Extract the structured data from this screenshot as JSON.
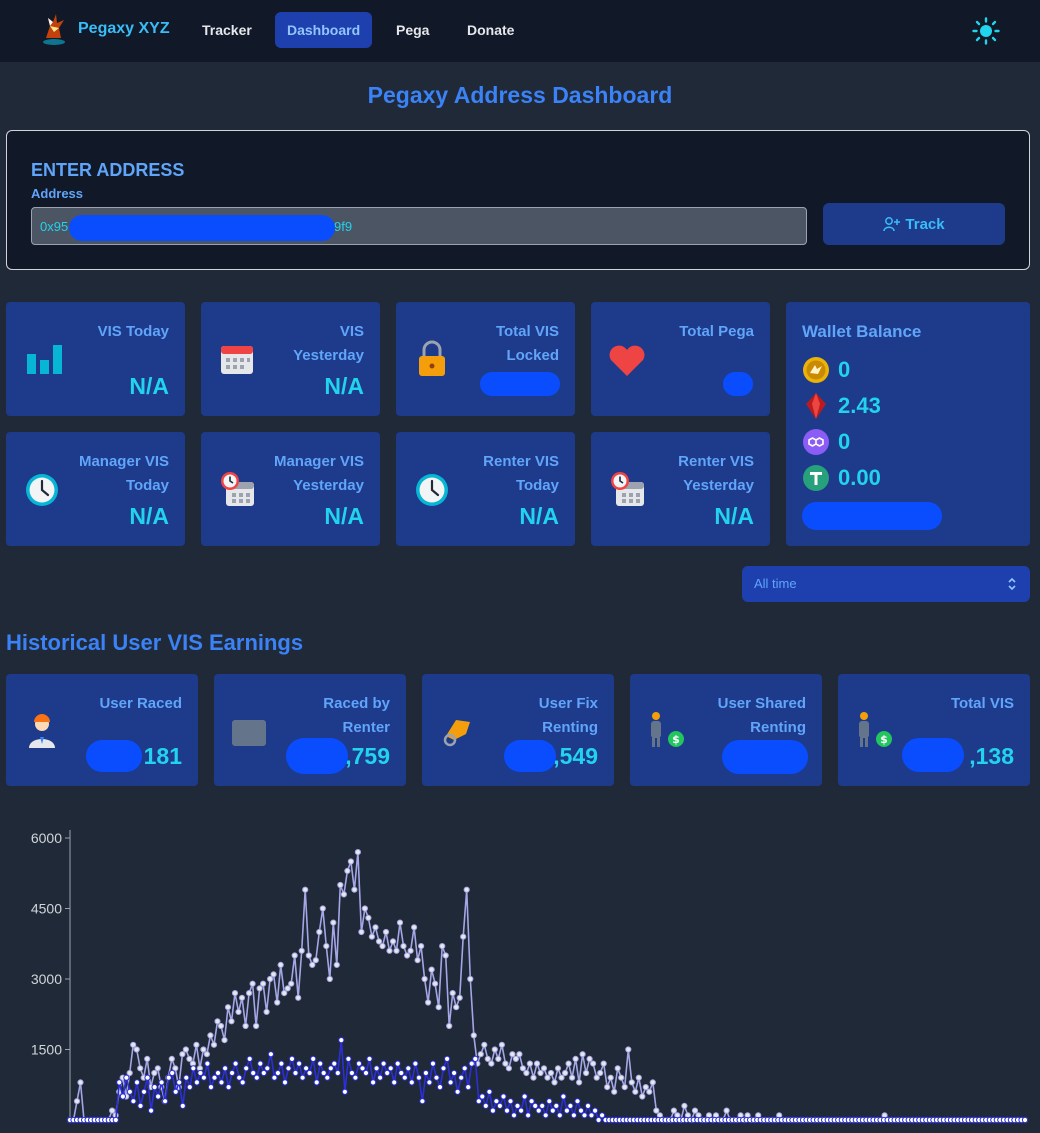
{
  "nav": {
    "brand": "Pegaxy XYZ",
    "links": [
      "Tracker",
      "Dashboard",
      "Pega",
      "Donate"
    ],
    "active": "Dashboard"
  },
  "page_title": "Pegaxy Address Dashboard",
  "address": {
    "heading": "ENTER ADDRESS",
    "label": "Address",
    "value_prefix": "0x95",
    "value_suffix": "9f9",
    "track_label": "Track"
  },
  "stats": {
    "vis_today": {
      "title1": "VIS Today",
      "value": "N/A"
    },
    "vis_yesterday": {
      "title1": "VIS",
      "title2": "Yesterday",
      "value": "N/A"
    },
    "total_vis_locked": {
      "title1": "Total VIS",
      "title2": "Locked"
    },
    "total_pega": {
      "title1": "Total Pega"
    },
    "manager_vis_today": {
      "title1": "Manager VIS",
      "title2": "Today",
      "value": "N/A"
    },
    "manager_vis_yesterday": {
      "title1": "Manager VIS",
      "title2": "Yesterday",
      "value": "N/A"
    },
    "renter_vis_today": {
      "title1": "Renter VIS",
      "title2": "Today",
      "value": "N/A"
    },
    "renter_vis_yesterday": {
      "title1": "Renter VIS",
      "title2": "Yesterday",
      "value": "N/A"
    }
  },
  "wallet": {
    "title": "Wallet Balance",
    "vis": "0",
    "pgx": "2.43",
    "matic": "0",
    "usdt": "0.00"
  },
  "filter": {
    "selected": "All time"
  },
  "history": {
    "title": "Historical User VIS Earnings",
    "user_raced": {
      "title1": "User Raced",
      "value": "181"
    },
    "raced_by_renter": {
      "title1": "Raced by",
      "title2": "Renter",
      "value": ",759"
    },
    "user_fix_renting": {
      "title1": "User Fix",
      "title2": "Renting",
      "value": ",549"
    },
    "user_shared_renting": {
      "title1": "User Shared",
      "title2": "Renting"
    },
    "total_vis": {
      "title1": "Total VIS",
      "value": ",138"
    }
  },
  "colors": {
    "accent": "#3b82f6",
    "card": "#1e3a8a",
    "value": "#22d3ee",
    "series_total": "#a5a6e6",
    "series_renter": "#2b2fd9"
  },
  "chart_data": {
    "type": "line",
    "title": "",
    "xlabel": "",
    "ylabel": "",
    "ylim": [
      0,
      6000
    ],
    "yticks": [
      "6000",
      "4500",
      "3000",
      "1500"
    ],
    "series": [
      {
        "name": "Total VIS",
        "values": [
          0,
          0,
          400,
          800,
          0,
          0,
          0,
          0,
          0,
          0,
          0,
          0,
          200,
          100,
          600,
          900,
          500,
          1000,
          1600,
          1500,
          1100,
          900,
          1300,
          700,
          1000,
          1100,
          700,
          400,
          900,
          1300,
          1100,
          700,
          1400,
          1500,
          1300,
          1200,
          1600,
          1100,
          1500,
          1400,
          1800,
          1600,
          2100,
          2000,
          1700,
          2400,
          2100,
          2700,
          2300,
          2600,
          2000,
          2700,
          2900,
          2000,
          2800,
          2900,
          2300,
          3000,
          3100,
          2500,
          3300,
          2700,
          2800,
          2900,
          3500,
          2600,
          3600,
          4900,
          3500,
          3300,
          3400,
          4000,
          4500,
          3700,
          3000,
          4200,
          3300,
          5000,
          4800,
          5300,
          5500,
          4900,
          5700,
          4000,
          4500,
          4300,
          3900,
          4100,
          3800,
          3700,
          4000,
          3600,
          3800,
          3600,
          4200,
          3700,
          3500,
          3600,
          4100,
          3400,
          3700,
          3000,
          2500,
          3200,
          2900,
          2400,
          3700,
          3500,
          2000,
          2700,
          2400,
          2600,
          3900,
          4900,
          3000,
          1800,
          1200,
          1400,
          1600,
          1300,
          1200,
          1500,
          1300,
          1600,
          1200,
          1100,
          1400,
          1300,
          1400,
          1100,
          1000,
          1200,
          900,
          1200,
          1000,
          1100,
          900,
          1000,
          800,
          1100,
          900,
          1000,
          1200,
          900,
          1300,
          800,
          1400,
          1000,
          1300,
          1200,
          900,
          1000,
          1200,
          700,
          900,
          600,
          1100,
          900,
          700,
          1500,
          800,
          600,
          900,
          500,
          700,
          600,
          800,
          200,
          100,
          0,
          0,
          0,
          200,
          100,
          0,
          300,
          100,
          0,
          200,
          100,
          0,
          0,
          100,
          0,
          100,
          0,
          0,
          200,
          0,
          0,
          0,
          100,
          0,
          100,
          0,
          0,
          100,
          0,
          0,
          0,
          0,
          0,
          100,
          0,
          0,
          0,
          0,
          0,
          0,
          0,
          0,
          0,
          0,
          0,
          0,
          0,
          0,
          0,
          0,
          0,
          0,
          0,
          0,
          0,
          0,
          0,
          0,
          0,
          0,
          0,
          0,
          0,
          100,
          0,
          0,
          0,
          0,
          0,
          0,
          0,
          0,
          0,
          0,
          0,
          0,
          0,
          0,
          0,
          0,
          0,
          0,
          0,
          0,
          0,
          0,
          0,
          0,
          0,
          0,
          0,
          0,
          0,
          0,
          0,
          0,
          0,
          0,
          0,
          0,
          0,
          0,
          0,
          0
        ]
      },
      {
        "name": "Raced by Renter",
        "values": [
          0,
          0,
          0,
          0,
          0,
          0,
          0,
          0,
          0,
          0,
          0,
          0,
          0,
          0,
          800,
          500,
          900,
          600,
          400,
          800,
          300,
          600,
          900,
          200,
          700,
          500,
          800,
          400,
          900,
          1000,
          600,
          800,
          300,
          900,
          700,
          1100,
          800,
          1000,
          900,
          1200,
          700,
          900,
          1000,
          800,
          1100,
          700,
          1000,
          1200,
          900,
          800,
          1100,
          1300,
          1000,
          900,
          1200,
          1000,
          1100,
          1400,
          900,
          1000,
          1200,
          800,
          1100,
          1300,
          1000,
          1200,
          900,
          1100,
          1000,
          1300,
          800,
          1200,
          1000,
          900,
          1100,
          1200,
          1000,
          1700,
          600,
          1300,
          1000,
          900,
          1200,
          1100,
          1000,
          1300,
          800,
          1100,
          900,
          1200,
          1000,
          1100,
          800,
          1200,
          1000,
          900,
          1100,
          800,
          1200,
          900,
          400,
          1000,
          800,
          1200,
          900,
          700,
          1100,
          1300,
          800,
          1000,
          600,
          900,
          1100,
          700,
          1200,
          1300,
          400,
          500,
          300,
          600,
          200,
          400,
          300,
          500,
          200,
          400,
          100,
          300,
          200,
          500,
          100,
          400,
          300,
          200,
          300,
          100,
          400,
          200,
          300,
          100,
          500,
          200,
          300,
          100,
          400,
          200,
          100,
          300,
          100,
          200,
          0,
          100,
          0,
          0,
          0,
          0,
          0,
          0,
          0,
          0,
          0,
          0,
          0,
          0,
          0,
          0,
          0,
          0,
          0,
          0,
          0,
          0,
          0,
          0,
          0,
          0,
          0,
          0,
          0,
          0,
          0,
          0,
          0,
          0,
          0,
          0,
          0,
          0,
          0,
          0,
          0,
          0,
          0,
          0,
          0,
          0,
          0,
          0,
          0,
          0,
          0,
          0,
          0,
          0,
          0,
          0,
          0,
          0,
          0,
          0,
          0,
          0,
          0,
          0,
          0,
          0,
          0,
          0,
          0,
          0,
          0,
          0,
          0,
          0,
          0,
          0,
          0,
          0,
          0,
          0,
          0,
          0,
          0,
          0,
          0,
          0,
          0,
          0,
          0,
          0,
          0,
          0,
          0,
          0,
          0,
          0,
          0,
          0,
          0,
          0,
          0,
          0,
          0,
          0,
          0,
          0,
          0,
          0,
          0,
          0,
          0,
          0,
          0,
          0,
          0,
          0,
          0,
          0,
          0,
          0,
          0,
          0
        ]
      }
    ]
  }
}
